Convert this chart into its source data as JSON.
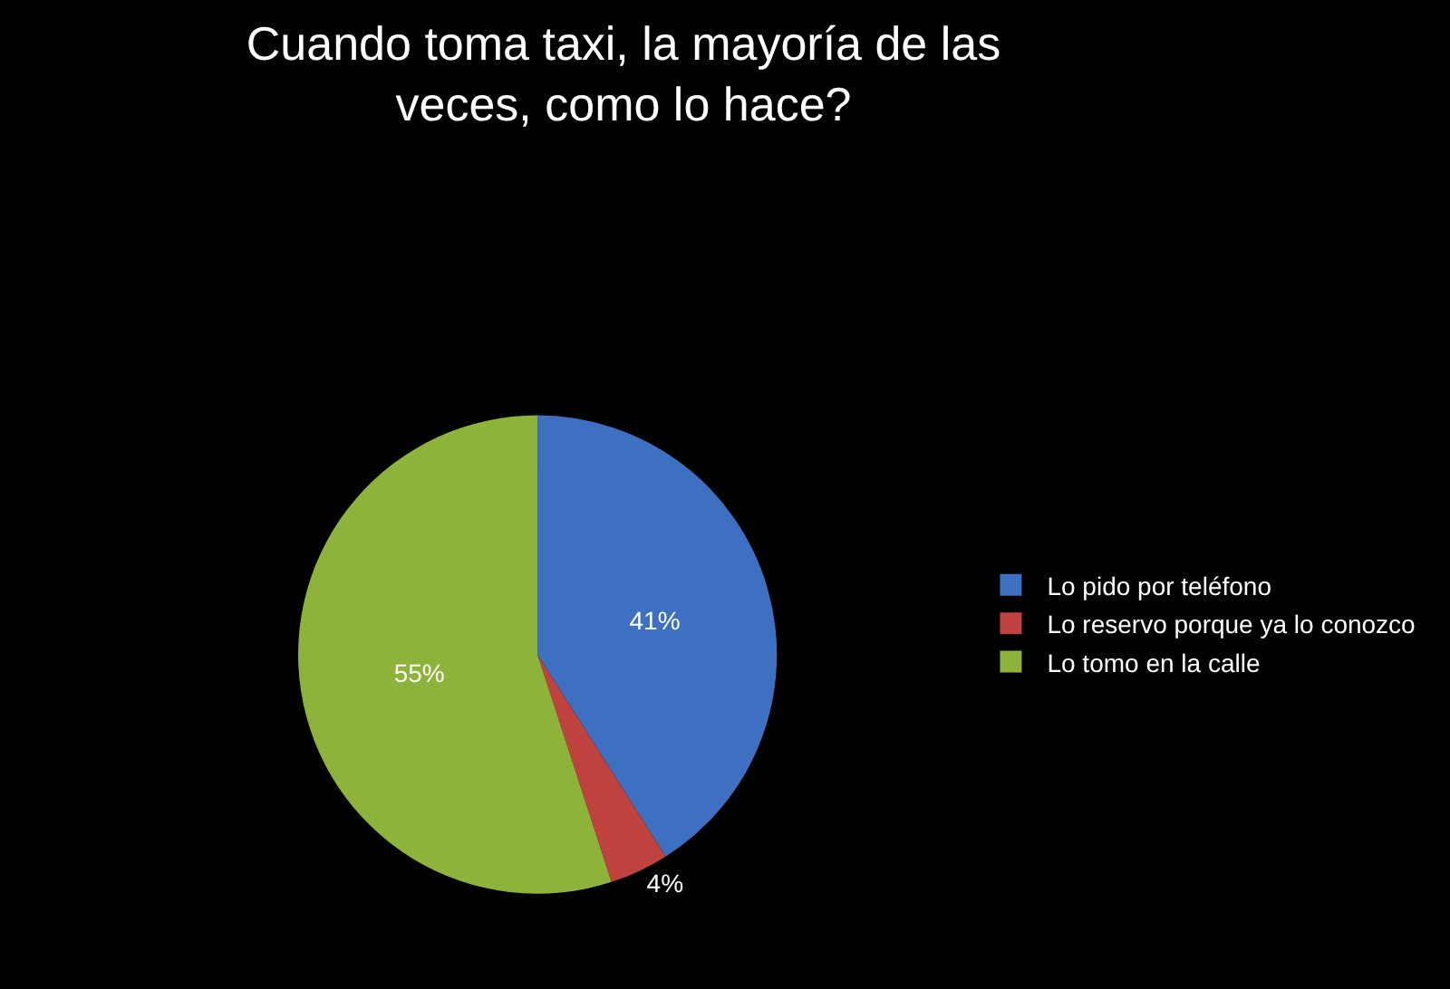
{
  "chart_data": {
    "type": "pie",
    "title": "Cuando toma taxi, la mayoría de las veces, como lo hace?",
    "categories": [
      "Lo pido por teléfono",
      "Lo reservo porque ya lo conozco",
      "Lo tomo en la calle"
    ],
    "values": [
      41,
      4,
      55
    ],
    "colors": [
      "#3d70c0",
      "#c0423f",
      "#8db33b"
    ],
    "value_labels": [
      "41%",
      "4%",
      "55%"
    ],
    "legend": "right"
  }
}
